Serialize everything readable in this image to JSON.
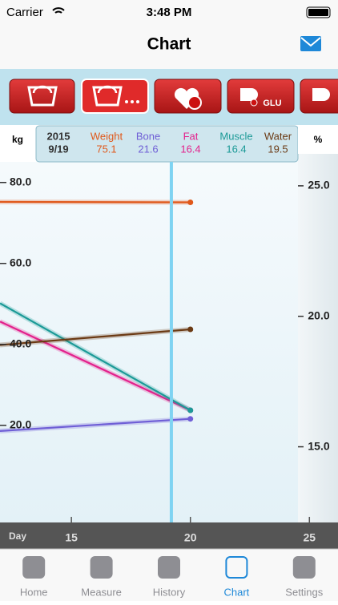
{
  "status_bar": {
    "carrier": "Carrier",
    "time": "3:48 PM"
  },
  "nav": {
    "title": "Chart"
  },
  "toolbar": {
    "glu_label": "GLU"
  },
  "chart": {
    "type": "line",
    "y_label": "kg",
    "y2_label": "%",
    "x_label": "Day",
    "xlim": [
      12,
      26
    ],
    "xticks": [
      15,
      20,
      25
    ],
    "ylim": [
      -4,
      94
    ],
    "yticks": [
      {
        "value": 20,
        "label": "20.0"
      },
      {
        "value": 40,
        "label": "40.0"
      },
      {
        "value": 60,
        "label": "60.0"
      },
      {
        "value": 80,
        "label": "80.0"
      }
    ],
    "y2lim": [
      12.1,
      27.3
    ],
    "y2ticks": [
      {
        "value": 15,
        "label": "15.0"
      },
      {
        "value": 20,
        "label": "20.0"
      },
      {
        "value": 25,
        "label": "25.0"
      }
    ],
    "cursor": {
      "year": "2015",
      "date": "9/19",
      "x": 19.2,
      "color": "#7fd3f2"
    },
    "x": [
      12,
      20
    ],
    "series": [
      {
        "name": "Weight",
        "color": "#e0581a",
        "axis": "y",
        "values": [
          75.2,
          75.1
        ]
      },
      {
        "name": "Bone",
        "color": "#6f5fd6",
        "axis": "y",
        "values": [
          18.6,
          21.6
        ]
      },
      {
        "name": "Fat",
        "color": "#e3218c",
        "axis": "y2",
        "values": [
          19.8,
          16.4
        ]
      },
      {
        "name": "Muscle",
        "color": "#1b9a97",
        "axis": "y2",
        "values": [
          20.5,
          16.4
        ]
      },
      {
        "name": "Water",
        "color": "#6b3a14",
        "axis": "y2",
        "values": [
          18.9,
          19.5
        ]
      }
    ]
  },
  "tab_bar": {
    "items": [
      "Home",
      "Measure",
      "History",
      "Chart",
      "Settings"
    ],
    "selected": 3,
    "active_color": "#1e88d8",
    "color": "#8e8e93"
  }
}
